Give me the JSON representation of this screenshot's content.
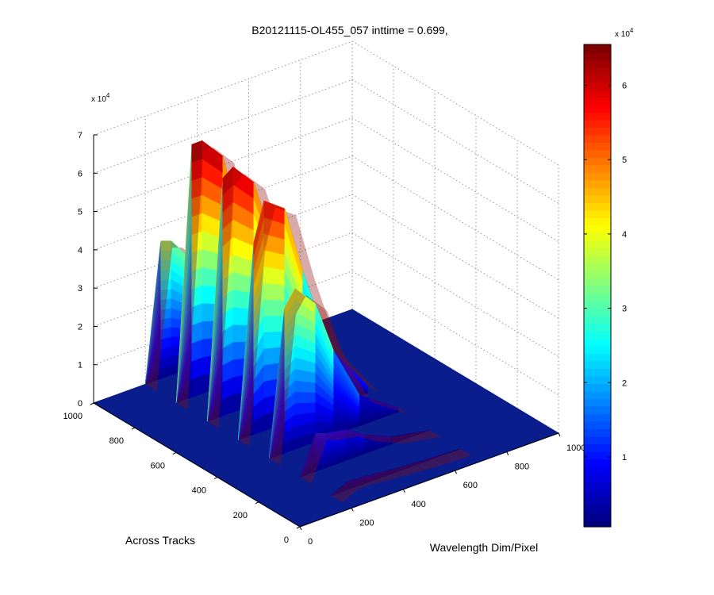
{
  "chart_data": {
    "type": "surface3d",
    "title": "B20121115-OL455_057 inttime = 0.699,",
    "xlabel": "Across Tracks",
    "ylabel": "Wavelength Dim/Pixel",
    "zlabel": "",
    "x_ticks": [
      0,
      200,
      400,
      600,
      800,
      1000
    ],
    "y_ticks": [
      0,
      200,
      400,
      600,
      800,
      1000
    ],
    "z_ticks": [
      0,
      1,
      2,
      3,
      4,
      5,
      6,
      7
    ],
    "z_multiplier": "x 10^4",
    "colorbar_ticks": [
      1,
      2,
      3,
      4,
      5,
      6
    ],
    "colorbar_multiplier": "x 10^4",
    "zlim": [
      0,
      70000
    ],
    "xlim": [
      0,
      1000
    ],
    "ylim": [
      0,
      1000
    ],
    "colormap": "jet",
    "grid": true,
    "peak_approx": 66000,
    "surface_profile": [
      {
        "across_track": 1000,
        "wavelength_bands": [
          {
            "wl": 200,
            "value": 0
          },
          {
            "wl": 260,
            "value": 36000
          },
          {
            "wl": 300,
            "value": 35000
          },
          {
            "wl": 380,
            "value": 28000
          },
          {
            "wl": 450,
            "value": 12000
          },
          {
            "wl": 550,
            "value": 3000
          },
          {
            "wl": 700,
            "value": 0
          }
        ]
      },
      {
        "across_track": 850,
        "wavelength_bands": [
          {
            "wl": 200,
            "value": 0
          },
          {
            "wl": 260,
            "value": 66000
          },
          {
            "wl": 300,
            "value": 66000
          },
          {
            "wl": 380,
            "value": 60000
          },
          {
            "wl": 450,
            "value": 40000
          },
          {
            "wl": 550,
            "value": 18000
          },
          {
            "wl": 700,
            "value": 2000
          }
        ]
      },
      {
        "across_track": 700,
        "wavelength_bands": [
          {
            "wl": 200,
            "value": 0
          },
          {
            "wl": 260,
            "value": 62000
          },
          {
            "wl": 300,
            "value": 64000
          },
          {
            "wl": 380,
            "value": 58000
          },
          {
            "wl": 450,
            "value": 42000
          },
          {
            "wl": 550,
            "value": 20000
          },
          {
            "wl": 700,
            "value": 3000
          }
        ]
      },
      {
        "across_track": 550,
        "wavelength_bands": [
          {
            "wl": 200,
            "value": 0
          },
          {
            "wl": 260,
            "value": 50000
          },
          {
            "wl": 300,
            "value": 60000
          },
          {
            "wl": 380,
            "value": 56000
          },
          {
            "wl": 450,
            "value": 38000
          },
          {
            "wl": 550,
            "value": 16000
          },
          {
            "wl": 700,
            "value": 2000
          }
        ]
      },
      {
        "across_track": 400,
        "wavelength_bands": [
          {
            "wl": 200,
            "value": 0
          },
          {
            "wl": 260,
            "value": 38000
          },
          {
            "wl": 300,
            "value": 42000
          },
          {
            "wl": 380,
            "value": 36000
          },
          {
            "wl": 450,
            "value": 22000
          },
          {
            "wl": 550,
            "value": 8000
          },
          {
            "wl": 700,
            "value": 1000
          }
        ]
      },
      {
        "across_track": 250,
        "wavelength_bands": [
          {
            "wl": 200,
            "value": 0
          },
          {
            "wl": 260,
            "value": 10000
          },
          {
            "wl": 300,
            "value": 9000
          },
          {
            "wl": 380,
            "value": 8000
          },
          {
            "wl": 450,
            "value": 5000
          },
          {
            "wl": 550,
            "value": 2000
          },
          {
            "wl": 700,
            "value": 0
          }
        ]
      },
      {
        "across_track": 100,
        "wavelength_bands": [
          {
            "wl": 200,
            "value": 0
          },
          {
            "wl": 260,
            "value": 2000
          },
          {
            "wl": 300,
            "value": 2000
          },
          {
            "wl": 380,
            "value": 1500
          },
          {
            "wl": 450,
            "value": 1000
          },
          {
            "wl": 550,
            "value": 500
          },
          {
            "wl": 700,
            "value": 0
          }
        ]
      }
    ]
  },
  "labels": {
    "title": "B20121115-OL455_057 inttime = 0.699,",
    "xlabel": "Across Tracks",
    "ylabel": "Wavelength Dim/Pixel",
    "z_multiplier_base": "x 10",
    "z_multiplier_exp": "4",
    "cb_multiplier_base": "x 10",
    "cb_multiplier_exp": "4"
  },
  "colors": {
    "background": "#ffffff",
    "axis": "#000000",
    "grid": "#808080",
    "floor": "#0a1d8c"
  }
}
